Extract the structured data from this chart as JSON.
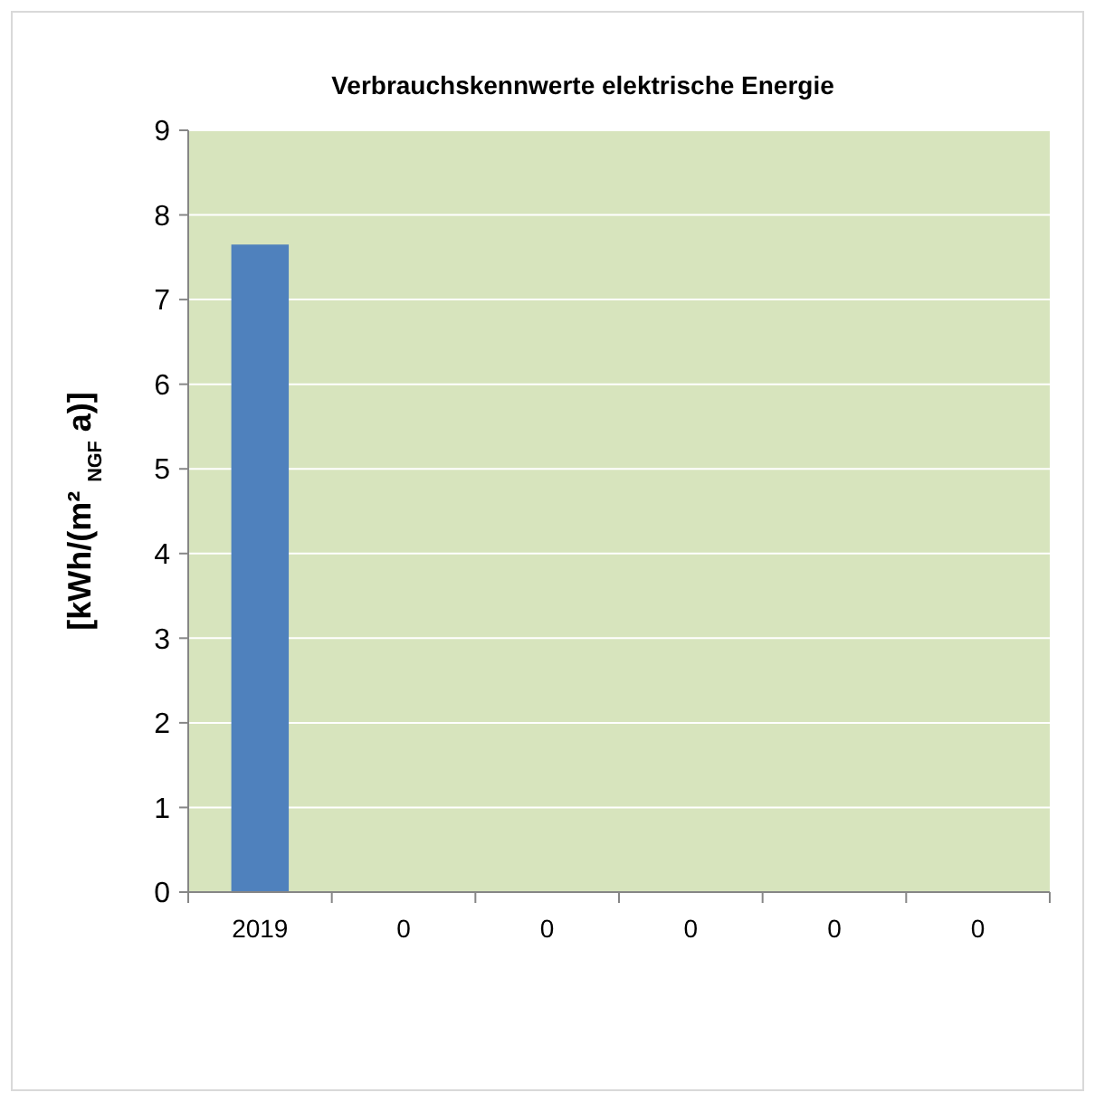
{
  "chart_data": {
    "type": "bar",
    "title": "Verbrauchskennwerte elektrische Energie",
    "ylabel": "[kWh/(m² $_{NGF}$ a)]",
    "categories": [
      "2019",
      "0",
      "0",
      "0",
      "0",
      "0"
    ],
    "values": [
      7.65,
      null,
      null,
      null,
      null,
      null
    ],
    "color": "#4f81bd",
    "ylim": [
      0,
      9
    ],
    "yticks": [
      0,
      1,
      2,
      3,
      4,
      5,
      6,
      7,
      8,
      9
    ],
    "grid": "y"
  }
}
